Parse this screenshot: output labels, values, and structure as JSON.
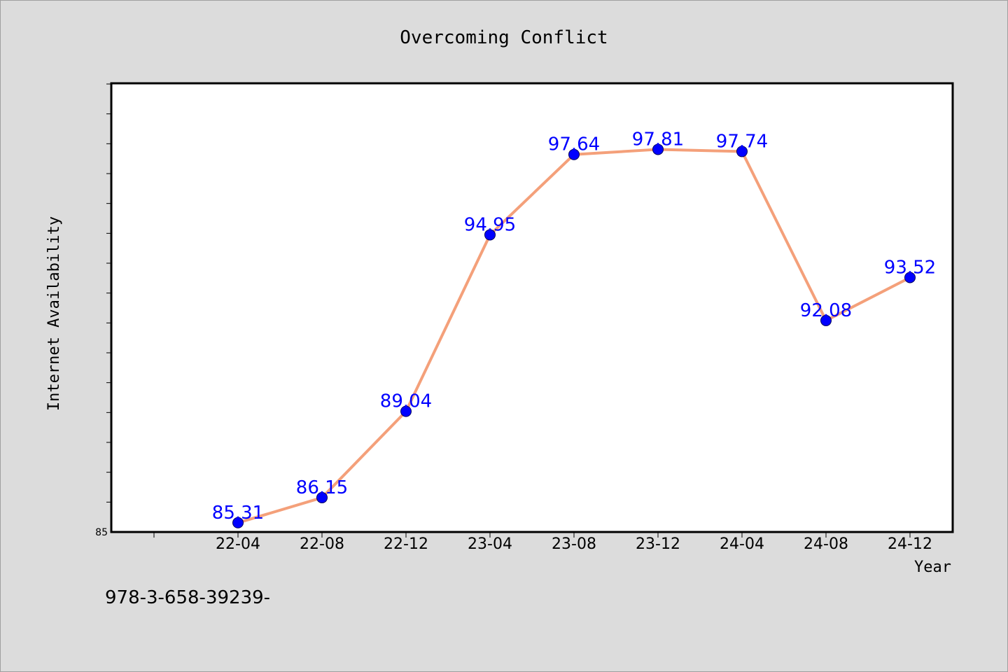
{
  "chart_data": {
    "type": "line",
    "title": "Overcoming Conflict",
    "xlabel": "Year",
    "ylabel": "Internet Availability",
    "categories": [
      "22-04",
      "22-08",
      "22-12",
      "23-04",
      "23-08",
      "23-12",
      "24-04",
      "24-08",
      "24-12"
    ],
    "series": [
      {
        "values": [
          85.31,
          86.15,
          89.04,
          94.95,
          97.64,
          97.81,
          97.74,
          92.08,
          93.52
        ],
        "labels": [
          "85.31",
          "86.15",
          "89.04",
          "94.95",
          "97.64",
          "97.81",
          "97.74",
          "92.08",
          "93.52"
        ],
        "line_color": "#f4a07a",
        "marker_color": "#0000ff"
      }
    ],
    "ylim": [
      85,
      100
    ],
    "ytick_labels": [
      "85"
    ],
    "grid": false,
    "legend": "none"
  },
  "footnote": "978-3-658-39239-",
  "colors": {
    "background": "#dcdcdc",
    "plot_background": "#ffffff",
    "line": "#f4a07a",
    "marker": "#0000ff",
    "data_label": "#0000ff"
  }
}
